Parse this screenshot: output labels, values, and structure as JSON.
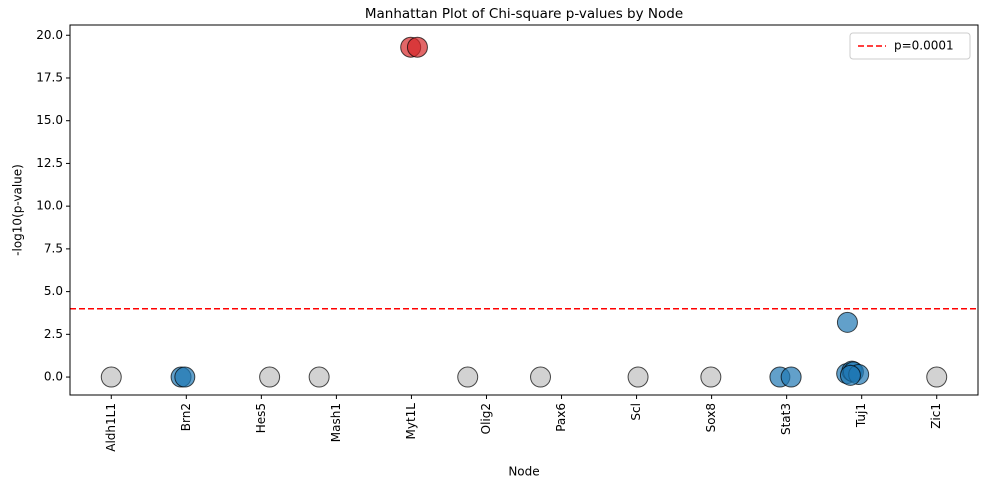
{
  "chart_data": {
    "type": "scatter",
    "title": "Manhattan Plot of Chi-square p-values by Node",
    "x_label": "Node",
    "y_label": "-log10(p-value)",
    "xlim": [
      -0.55,
      11.55
    ],
    "ylim": [
      -1.05,
      20.6
    ],
    "xticks": [
      {
        "value": 0,
        "label": "Aldh1L1"
      },
      {
        "value": 1,
        "label": "Brn2"
      },
      {
        "value": 2,
        "label": "Hes5"
      },
      {
        "value": 3,
        "label": "Mash1"
      },
      {
        "value": 4,
        "label": "Myt1L"
      },
      {
        "value": 5,
        "label": "Olig2"
      },
      {
        "value": 6,
        "label": "Pax6"
      },
      {
        "value": 7,
        "label": "Scl"
      },
      {
        "value": 8,
        "label": "Sox8"
      },
      {
        "value": 9,
        "label": "Stat3"
      },
      {
        "value": 10,
        "label": "Tuj1"
      },
      {
        "value": 11,
        "label": "Zic1"
      }
    ],
    "yticks": [
      {
        "value": 0,
        "label": "0.0"
      },
      2.5,
      {
        "value": 5,
        "label": "5.0"
      },
      7.5,
      {
        "value": 10,
        "label": "10.0"
      },
      12.5,
      {
        "value": 15,
        "label": "15.0"
      },
      17.5,
      {
        "value": 20,
        "label": "20.0"
      }
    ],
    "series": [
      {
        "color": "#bfbfbf",
        "x": [
          0,
          2.11,
          2.77,
          4.75,
          5.72,
          7.02,
          7.99,
          11.0
        ],
        "values": [
          0,
          0,
          0,
          0,
          0,
          0,
          0,
          0
        ]
      },
      {
        "color": "#1f77b4",
        "x": [
          0.93,
          0.98,
          8.91,
          9.06,
          9.81,
          9.8,
          9.87,
          9.89,
          9.96,
          9.85
        ],
        "values": [
          0,
          0,
          0,
          0,
          3.2,
          0.2,
          0.35,
          0.3,
          0.15,
          0.1
        ]
      },
      {
        "color": "#d62728",
        "x": [
          3.99,
          4.08
        ],
        "values": [
          19.3,
          19.3
        ]
      }
    ],
    "threshold": {
      "y": 4,
      "label": "p=0.0001",
      "color": "#ff0000"
    },
    "legend": "upper right"
  }
}
